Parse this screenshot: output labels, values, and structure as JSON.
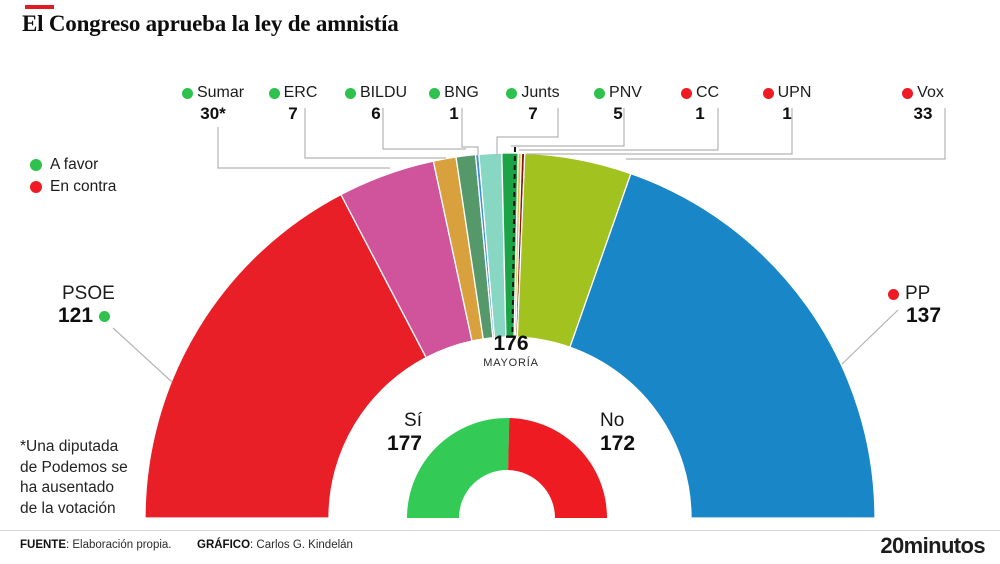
{
  "title": "El Congreso aprueba la ley de amnistía",
  "accent_color": "#e01b22",
  "legend": {
    "favor_label": "A favor",
    "contra_label": "En contra",
    "favor_color": "#2ec14e",
    "contra_color": "#ee1b24"
  },
  "chart_data": {
    "type": "pie",
    "subtype": "semicircle-parliament",
    "total_seats": 349,
    "majority": {
      "value": "176",
      "label": "MAYORÍA"
    },
    "series": [
      {
        "name": "PSOE",
        "seats": 121,
        "value_display": "121",
        "color": "#e81f27",
        "vote": "favor"
      },
      {
        "name": "Sumar",
        "seats": 30,
        "value_display": "30*",
        "color": "#d0549c",
        "vote": "favor"
      },
      {
        "name": "ERC",
        "seats": 7,
        "value_display": "7",
        "color": "#d8a13e",
        "vote": "favor"
      },
      {
        "name": "BILDU",
        "seats": 6,
        "value_display": "6",
        "color": "#55996b",
        "vote": "favor"
      },
      {
        "name": "BNG",
        "seats": 1,
        "value_display": "1",
        "color": "#3a8fdc",
        "vote": "favor"
      },
      {
        "name": "Junts",
        "seats": 7,
        "value_display": "7",
        "color": "#87d7c3",
        "vote": "favor"
      },
      {
        "name": "PNV",
        "seats": 5,
        "value_display": "5",
        "color": "#1ca345",
        "vote": "favor"
      },
      {
        "name": "CC",
        "seats": 1,
        "value_display": "1",
        "color": "#e2c13d",
        "vote": "contra"
      },
      {
        "name": "UPN",
        "seats": 1,
        "value_display": "1",
        "color": "#8c1111",
        "vote": "contra"
      },
      {
        "name": "Vox",
        "seats": 33,
        "value_display": "33",
        "color": "#a2c21f",
        "vote": "contra"
      },
      {
        "name": "PP",
        "seats": 137,
        "value_display": "137",
        "color": "#1986c8",
        "vote": "contra"
      }
    ],
    "inner": {
      "si_label": "Sí",
      "si_value": "177",
      "si_seats": 177,
      "si_color": "#33cb55",
      "no_label": "No",
      "no_value": "172",
      "no_seats": 172,
      "no_color": "#ee1b22"
    }
  },
  "footnote": {
    "lines": [
      "*Una diputada",
      "de Podemos se",
      "ha ausentado",
      "de la votación"
    ]
  },
  "footer": {
    "source_label": "FUENTE",
    "source_text": ": Elaboración propia.",
    "credit_label": "GRÁFICO",
    "credit_text": ": Carlos G. Kindelán",
    "logo": "20minutos"
  }
}
